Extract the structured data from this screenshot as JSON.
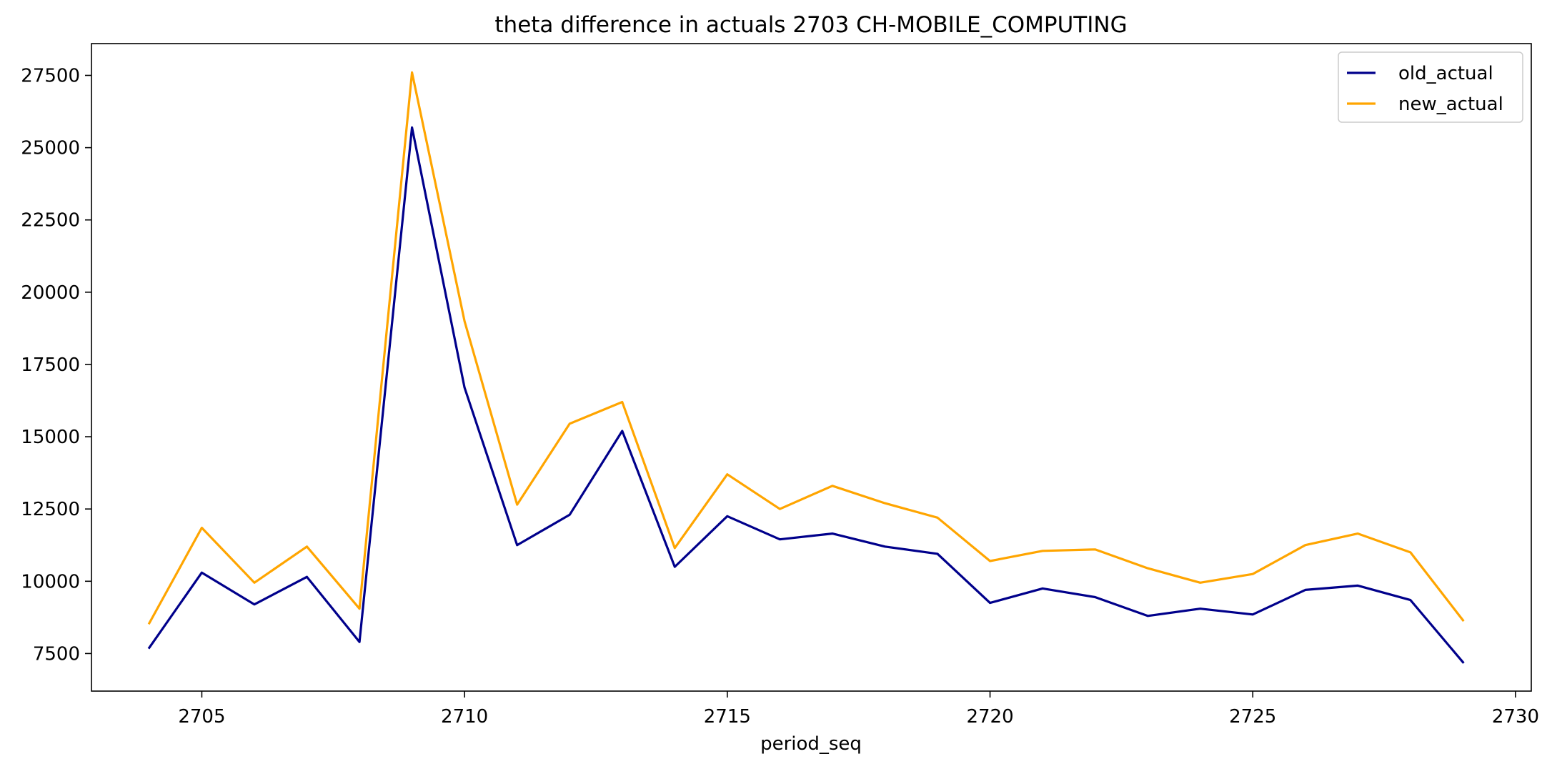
{
  "chart_data": {
    "type": "line",
    "title": "theta difference in actuals 2703 CH-MOBILE_COMPUTING",
    "xlabel": "period_seq",
    "ylabel": "",
    "x": [
      2704,
      2705,
      2706,
      2707,
      2708,
      2709,
      2710,
      2711,
      2712,
      2713,
      2714,
      2715,
      2716,
      2717,
      2718,
      2719,
      2720,
      2721,
      2722,
      2723,
      2724,
      2725,
      2726,
      2727,
      2728,
      2729
    ],
    "xlim": [
      2702.9,
      2730.3
    ],
    "ylim": [
      6200,
      28600
    ],
    "xticks": [
      2705,
      2710,
      2715,
      2720,
      2725,
      2730
    ],
    "yticks": [
      7500,
      10000,
      12500,
      15000,
      17500,
      20000,
      22500,
      25000,
      27500
    ],
    "grid": false,
    "legend_position": "top-right",
    "series": [
      {
        "name": "old_actual",
        "color": "#00008b",
        "values": [
          7700,
          10300,
          9200,
          10150,
          7900,
          25700,
          16700,
          11250,
          12300,
          15200,
          10500,
          12250,
          11450,
          11650,
          11200,
          10950,
          9250,
          9750,
          9450,
          8800,
          9050,
          8850,
          9700,
          9850,
          9350,
          7200
        ]
      },
      {
        "name": "new_actual",
        "color": "#ffa500",
        "values": [
          8550,
          11850,
          9950,
          11200,
          9050,
          27600,
          19000,
          12650,
          15450,
          16200,
          11150,
          13700,
          12500,
          13300,
          12700,
          12200,
          10700,
          11050,
          11100,
          10450,
          9950,
          10250,
          11250,
          11650,
          11000,
          8650
        ]
      }
    ]
  }
}
